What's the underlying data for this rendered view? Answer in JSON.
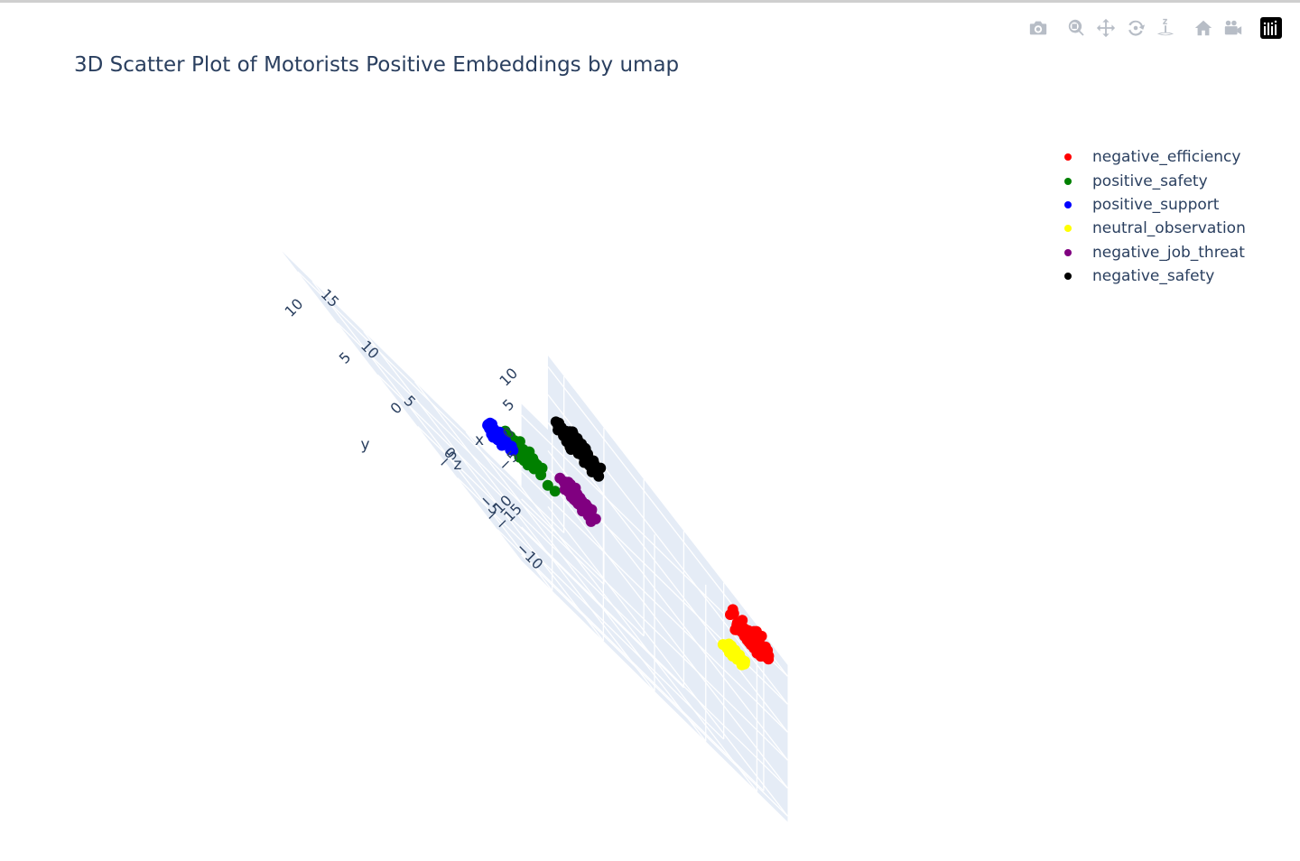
{
  "window": {
    "title": "3D Scatter Plot of Motorists Positive Embeddings by umap"
  },
  "modebar": {
    "buttons": [
      {
        "name": "download-plot-icon",
        "tooltip": "Download plot as a png"
      },
      {
        "name": "zoom-icon",
        "tooltip": "Zoom"
      },
      {
        "name": "pan-icon",
        "tooltip": "Pan"
      },
      {
        "name": "orbit-rotation-icon",
        "tooltip": "Orbital rotation"
      },
      {
        "name": "turntable-rotation-icon",
        "tooltip": "Turntable rotation"
      },
      {
        "name": "reset-camera-icon",
        "tooltip": "Reset camera to default"
      },
      {
        "name": "camera-view-icon",
        "tooltip": "Reset camera to last save"
      },
      {
        "name": "plotly-logo-icon",
        "tooltip": "Produced with Plotly"
      }
    ]
  },
  "chart_data": {
    "type": "scatter",
    "dimensions": 3,
    "title": "3D Scatter Plot of Motorists Positive Embeddings by umap",
    "axes": {
      "x": {
        "label": "x",
        "ticks": [
          "−10",
          "−5",
          "0",
          "5",
          "10",
          "15"
        ],
        "range": [
          -13,
          17
        ]
      },
      "y": {
        "label": "y",
        "ticks": [
          "−10",
          "−5",
          "0",
          "5",
          "10"
        ],
        "range": [
          -13,
          13
        ]
      },
      "z": {
        "label": "z",
        "ticks": [
          "−15",
          "−5",
          "0",
          "5",
          "10"
        ],
        "range": [
          -16,
          12
        ]
      }
    },
    "grid": true,
    "legend_position": "top-right",
    "series": [
      {
        "name": "negative_efficiency",
        "color": "#ff0000",
        "center": {
          "x": -10,
          "y": -12,
          "z": 9
        },
        "spread": 1.2,
        "count": 140
      },
      {
        "name": "positive_safety",
        "color": "#008000",
        "center": {
          "x": -3,
          "y": 5,
          "z": -1
        },
        "spread": 1.0,
        "count": 90
      },
      {
        "name": "positive_support",
        "color": "#0000ff",
        "center": {
          "x": -1,
          "y": 6,
          "z": -3
        },
        "spread": 0.8,
        "count": 80
      },
      {
        "name": "neutral_observation",
        "color": "#ffff00",
        "center": {
          "x": -9,
          "y": -11,
          "z": 3
        },
        "spread": 0.7,
        "count": 70
      },
      {
        "name": "negative_job_threat",
        "color": "#800080",
        "center": {
          "x": -11,
          "y": 6,
          "z": 4
        },
        "spread": 1.0,
        "count": 110
      },
      {
        "name": "negative_safety",
        "color": "#000000",
        "center": {
          "x": 12,
          "y": -12,
          "z": 3
        },
        "spread": 1.2,
        "count": 130
      }
    ]
  }
}
